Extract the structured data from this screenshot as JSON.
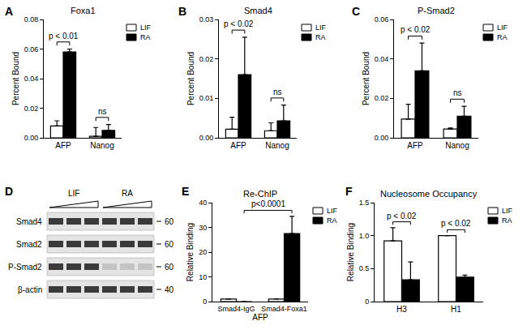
{
  "chart_data": [
    {
      "panel_label": "A",
      "type": "bar",
      "title": "Foxa1",
      "y_label": "Percent Bound",
      "categories": [
        "AFP",
        "Nanog"
      ],
      "series": [
        {
          "name": "LIF",
          "color": "#ffffff",
          "values": [
            0.008,
            0.001
          ],
          "errors": [
            0.0035,
            0.006
          ]
        },
        {
          "name": "RA",
          "color": "#000000",
          "values": [
            0.058,
            0.005
          ],
          "errors": [
            0.002,
            0.004
          ]
        }
      ],
      "ylim": [
        0,
        0.08
      ],
      "yticks": [
        {
          "value": 0,
          "label": "0.00"
        },
        0.02,
        0.04,
        0.06,
        0.08
      ],
      "grid": false,
      "legend": "right",
      "annotations": [
        {
          "text": "p < 0.01",
          "from": {
            "category": "AFP",
            "series": "LIF"
          },
          "to": {
            "category": "AFP",
            "series": "RA"
          }
        },
        {
          "text": "ns",
          "from": {
            "category": "Nanog",
            "series": "LIF"
          },
          "to": {
            "category": "Nanog",
            "series": "RA"
          }
        }
      ]
    },
    {
      "panel_label": "B",
      "type": "bar",
      "title": "Smad4",
      "y_label": "Percent Bound",
      "categories": [
        "AFP",
        "Nanog"
      ],
      "series": [
        {
          "name": "LIF",
          "color": "#ffffff",
          "values": [
            0.0022,
            0.0018
          ],
          "errors": [
            0.003,
            0.002
          ]
        },
        {
          "name": "RA",
          "color": "#000000",
          "values": [
            0.016,
            0.0043
          ],
          "errors": [
            0.0095,
            0.004
          ]
        }
      ],
      "ylim": [
        0,
        0.03
      ],
      "yticks": [
        {
          "value": 0,
          "label": "0.00"
        },
        0.01,
        0.02,
        0.03
      ],
      "grid": false,
      "legend": "right",
      "annotations": [
        {
          "text": "p < 0.02",
          "from": {
            "category": "AFP",
            "series": "LIF"
          },
          "to": {
            "category": "AFP",
            "series": "RA"
          }
        },
        {
          "text": "ns",
          "from": {
            "category": "Nanog",
            "series": "LIF"
          },
          "to": {
            "category": "Nanog",
            "series": "RA"
          }
        }
      ]
    },
    {
      "panel_label": "C",
      "type": "bar",
      "title": "P-Smad2",
      "y_label": "Percent Bound",
      "categories": [
        "AFP",
        "Nanog"
      ],
      "series": [
        {
          "name": "LIF",
          "color": "#ffffff",
          "values": [
            0.0095,
            0.0045
          ],
          "errors": [
            0.0075,
            0.0005
          ]
        },
        {
          "name": "RA",
          "color": "#000000",
          "values": [
            0.034,
            0.011
          ],
          "errors": [
            0.014,
            0.005
          ]
        }
      ],
      "ylim": [
        0,
        0.06
      ],
      "yticks": [
        {
          "value": 0,
          "label": "0.00"
        },
        0.02,
        0.04,
        0.06
      ],
      "grid": false,
      "legend": "right",
      "annotations": [
        {
          "text": "p < 0.02",
          "from": {
            "category": "AFP",
            "series": "LIF"
          },
          "to": {
            "category": "AFP",
            "series": "RA"
          }
        },
        {
          "text": "ns",
          "from": {
            "category": "Nanog",
            "series": "LIF"
          },
          "to": {
            "category": "Nanog",
            "series": "RA"
          }
        }
      ]
    },
    {
      "panel_label": "E",
      "type": "bar",
      "title": "Re-ChIP",
      "y_label": "Relative Binding",
      "x_label": "AFP",
      "categories": [
        "Smad4-IgG",
        "Smad4-Foxa1"
      ],
      "series": [
        {
          "name": "LIF",
          "color": "#ffffff",
          "values": [
            1,
            1
          ],
          "errors": [
            0,
            0
          ]
        },
        {
          "name": "RA",
          "color": "#000000",
          "values": [
            0,
            27.5
          ],
          "errors": [
            0,
            7
          ]
        }
      ],
      "ylim": [
        0,
        40
      ],
      "yticks": [
        0,
        10,
        20,
        30,
        40
      ],
      "grid": false,
      "legend": "right",
      "annotations": [
        {
          "text": "p<0.0001",
          "from": {
            "category": "Smad4-IgG",
            "series": "RA"
          },
          "to": {
            "category": "Smad4-Foxa1",
            "series": "RA"
          }
        }
      ]
    },
    {
      "panel_label": "F",
      "type": "bar",
      "title": "Nucleosome Occupancy",
      "y_label": "Relative Binding",
      "categories": [
        "H3",
        "H1"
      ],
      "series": [
        {
          "name": "LIF",
          "color": "#ffffff",
          "values": [
            0.92,
            1.0
          ],
          "errors": [
            0.2,
            0
          ]
        },
        {
          "name": "RA",
          "color": "#000000",
          "values": [
            0.33,
            0.37
          ],
          "errors": [
            0.27,
            0.03
          ]
        }
      ],
      "ylim": [
        0,
        1.5
      ],
      "yticks": [
        0,
        0.5,
        {
          "value": 1,
          "label": "1.0"
        },
        1.5
      ],
      "grid": false,
      "legend": "right",
      "annotations": [
        {
          "text": "p < 0.02",
          "from": {
            "category": "H3",
            "series": "LIF"
          },
          "to": {
            "category": "H3",
            "series": "RA"
          }
        },
        {
          "text": "p < 0.02",
          "from": {
            "category": "H1",
            "series": "LIF"
          },
          "to": {
            "category": "H1",
            "series": "RA"
          }
        }
      ]
    }
  ],
  "blot": {
    "panel_label": "D",
    "groups": [
      "LIF",
      "RA"
    ],
    "rows": [
      {
        "label": "Smad4",
        "marker": 60
      },
      {
        "label": "Smad2",
        "marker": 60
      },
      {
        "label": "P-Smad2",
        "marker": 60
      },
      {
        "label": "β-actin",
        "marker": 40
      }
    ]
  }
}
